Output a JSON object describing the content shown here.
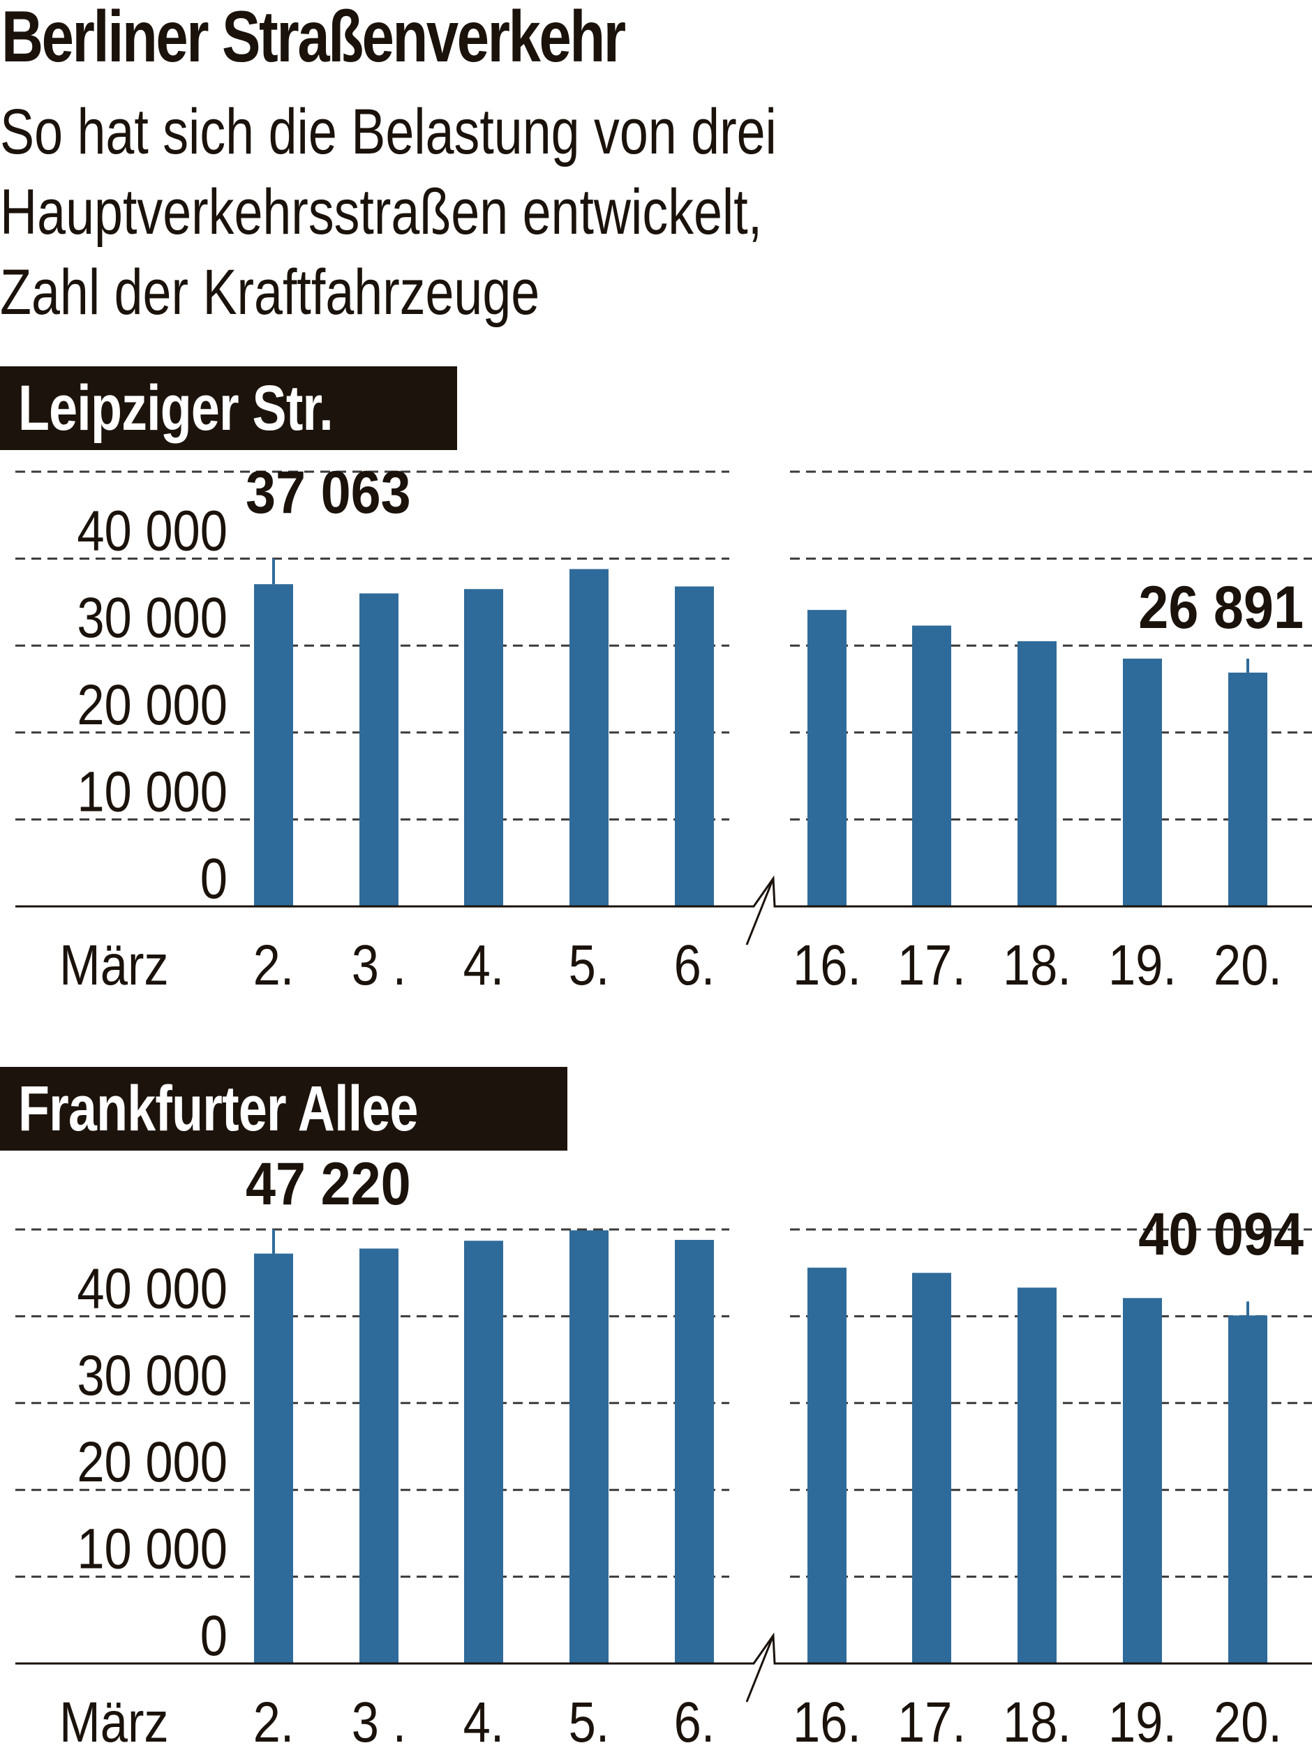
{
  "header": {
    "title": "Berliner Straßenverkehr",
    "subtitle_lines": [
      "So hat sich die Belastung von drei",
      "Hauptverkehrsstraßen entwickelt,",
      "Zahl der Kraftfahrzeuge"
    ]
  },
  "colors": {
    "bar": "#2f6b9a",
    "label_box": "#1c130c",
    "text": "#1a120b",
    "grid": "#333333"
  },
  "chart_data": [
    {
      "type": "bar",
      "title": "Leipziger Str.",
      "subtitle": "Zahl der Kraftfahrzeuge",
      "xlabel": "März",
      "ylabel": "",
      "categories": [
        "2.",
        "3 .",
        "4.",
        "5.",
        "6.",
        "16.",
        "17.",
        "18.",
        "19.",
        "20."
      ],
      "values": [
        37063,
        36000,
        36500,
        38800,
        36800,
        34100,
        32300,
        30500,
        28500,
        26891
      ],
      "yticks": [
        "0",
        "10 000",
        "20 000",
        "30 000",
        "40 000"
      ],
      "ylim": [
        0,
        50000
      ],
      "grid": true,
      "axis_break_after_index": 4,
      "annotations": [
        {
          "index": 0,
          "text": "37 063"
        },
        {
          "index": 9,
          "text": "26 891"
        }
      ]
    },
    {
      "type": "bar",
      "title": "Frankfurter Allee",
      "subtitle": "Zahl der Kraftfahrzeuge",
      "xlabel": "März",
      "ylabel": "",
      "categories": [
        "2.",
        "3 .",
        "4.",
        "5.",
        "6.",
        "16.",
        "17.",
        "18.",
        "19.",
        "20."
      ],
      "values": [
        47220,
        47800,
        48700,
        49900,
        48800,
        45600,
        45000,
        43300,
        42100,
        40094
      ],
      "yticks": [
        "0",
        "10 000",
        "20 000",
        "30 000",
        "40 000"
      ],
      "ylim": [
        0,
        50000
      ],
      "grid": true,
      "axis_break_after_index": 4,
      "annotations": [
        {
          "index": 0,
          "text": "47 220"
        },
        {
          "index": 9,
          "text": "40 094"
        }
      ]
    }
  ]
}
